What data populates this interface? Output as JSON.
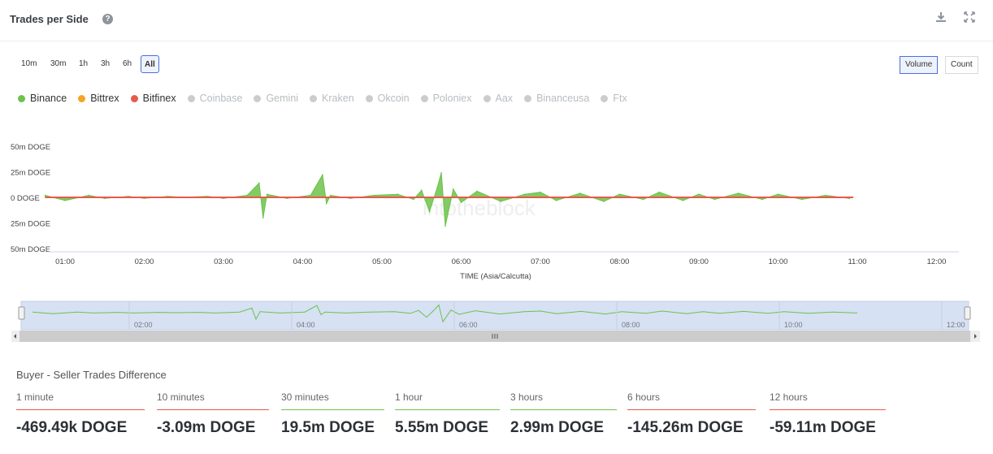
{
  "header": {
    "title": "Trades per Side",
    "help_icon": "?"
  },
  "range_buttons": [
    {
      "label": "10m",
      "active": false
    },
    {
      "label": "30m",
      "active": false
    },
    {
      "label": "1h",
      "active": false
    },
    {
      "label": "3h",
      "active": false
    },
    {
      "label": "6h",
      "active": false
    },
    {
      "label": "All",
      "active": true
    }
  ],
  "mode_toggle": [
    {
      "label": "Volume",
      "active": true
    },
    {
      "label": "Count",
      "active": false
    }
  ],
  "legend": [
    {
      "label": "Binance",
      "color": "#6cc24a",
      "enabled": true
    },
    {
      "label": "Bittrex",
      "color": "#f5a623",
      "enabled": true
    },
    {
      "label": "Bitfinex",
      "color": "#e8594a",
      "enabled": true
    },
    {
      "label": "Coinbase",
      "color": "#cccccc",
      "enabled": false
    },
    {
      "label": "Gemini",
      "color": "#cccccc",
      "enabled": false
    },
    {
      "label": "Kraken",
      "color": "#cccccc",
      "enabled": false
    },
    {
      "label": "Okcoin",
      "color": "#cccccc",
      "enabled": false
    },
    {
      "label": "Poloniex",
      "color": "#cccccc",
      "enabled": false
    },
    {
      "label": "Aax",
      "color": "#cccccc",
      "enabled": false
    },
    {
      "label": "Binanceusa",
      "color": "#cccccc",
      "enabled": false
    },
    {
      "label": "Ftx",
      "color": "#cccccc",
      "enabled": false
    }
  ],
  "chart_data": {
    "type": "area",
    "title": "Trades per Side",
    "xlabel": "TIME (Asia/Calcutta)",
    "ylabel": "",
    "x_ticks": [
      "01:00",
      "02:00",
      "03:00",
      "04:00",
      "05:00",
      "06:00",
      "07:00",
      "08:00",
      "09:00",
      "10:00",
      "11:00",
      "12:00"
    ],
    "y_ticks": [
      "50m DOGE",
      "25m DOGE",
      "0 DOGE",
      "25m DOGE",
      "50m DOGE"
    ],
    "ylim": [
      -50,
      50
    ],
    "y_unit": "m DOGE",
    "xlim_hours": [
      0.75,
      12.2
    ],
    "series": [
      {
        "name": "Binance",
        "color": "#6cc24a",
        "x": [
          0.75,
          1.0,
          1.3,
          1.5,
          1.8,
          2.0,
          2.3,
          2.5,
          2.8,
          3.0,
          3.3,
          3.45,
          3.5,
          3.55,
          3.8,
          4.1,
          4.25,
          4.3,
          4.35,
          4.6,
          4.9,
          5.2,
          5.4,
          5.5,
          5.6,
          5.7,
          5.75,
          5.8,
          5.9,
          6.0,
          6.2,
          6.5,
          6.8,
          7.0,
          7.2,
          7.5,
          7.8,
          8.0,
          8.3,
          8.5,
          8.8,
          9.0,
          9.2,
          9.5,
          9.8,
          10.0,
          10.3,
          10.6,
          10.9
        ],
        "values": [
          2,
          -3,
          2,
          -1,
          1,
          -1,
          1,
          0,
          1,
          -1,
          2,
          14,
          -20,
          3,
          -1,
          2,
          22,
          -6,
          2,
          -1,
          2,
          3,
          -2,
          7,
          -14,
          10,
          24,
          -28,
          8,
          -5,
          6,
          -4,
          3,
          5,
          -3,
          4,
          -4,
          3,
          -2,
          5,
          -3,
          3,
          -2,
          4,
          -2,
          3,
          -2,
          2,
          -1
        ]
      },
      {
        "name": "Bittrex",
        "color": "#f5a623",
        "x": [
          0.75,
          10.95
        ],
        "values": [
          0,
          0
        ]
      },
      {
        "name": "Bitfinex",
        "color": "#e8594a",
        "x": [
          0.75,
          10.95
        ],
        "values": [
          0,
          0
        ]
      }
    ],
    "navigator": {
      "x_ticks": [
        "02:00",
        "04:00",
        "06:00",
        "08:00",
        "10:00",
        "12:00"
      ]
    },
    "grid": false,
    "legend_position": "top-left",
    "watermark": "intotheblock"
  },
  "stats": {
    "title": "Buyer - Seller Trades Difference",
    "items": [
      {
        "label": "1 minute",
        "value": "-469.49k DOGE",
        "color": "#e8594a"
      },
      {
        "label": "10 minutes",
        "value": "-3.09m DOGE",
        "color": "#e8594a"
      },
      {
        "label": "30 minutes",
        "value": "19.5m DOGE",
        "color": "#6cc24a"
      },
      {
        "label": "1 hour",
        "value": "5.55m DOGE",
        "color": "#6cc24a"
      },
      {
        "label": "3 hours",
        "value": "2.99m DOGE",
        "color": "#6cc24a"
      },
      {
        "label": "6 hours",
        "value": "-145.26m DOGE",
        "color": "#e8594a"
      },
      {
        "label": "12 hours",
        "value": "-59.11m DOGE",
        "color": "#e8594a"
      }
    ]
  }
}
